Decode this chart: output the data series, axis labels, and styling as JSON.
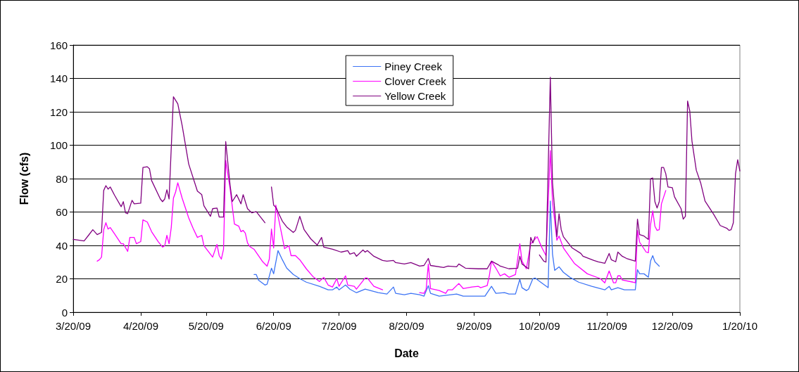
{
  "chart_data": {
    "type": "line",
    "xlabel": "Date",
    "ylabel": "Flow (cfs)",
    "xlim": [
      "2009-03-20",
      "2010-01-20"
    ],
    "xticks": [
      {
        "value": "2009-03-20",
        "label": "3/20/09"
      },
      {
        "value": "2009-04-20",
        "label": "4/20/09"
      },
      {
        "value": "2009-05-20",
        "label": "5/20/09"
      },
      {
        "value": "2009-06-20",
        "label": "6/20/09"
      },
      {
        "value": "2009-07-20",
        "label": "7/20/09"
      },
      {
        "value": "2009-08-20",
        "label": "8/20/09"
      },
      {
        "value": "2009-09-20",
        "label": "9/20/09"
      },
      {
        "value": "2009-10-20",
        "label": "10/20/09"
      },
      {
        "value": "2009-11-20",
        "label": "11/20/09"
      },
      {
        "value": "2009-12-20",
        "label": "12/20/09"
      },
      {
        "value": "2010-01-20",
        "label": "1/20/10"
      }
    ],
    "ylim": [
      0,
      160
    ],
    "yticks": [
      0,
      20,
      40,
      60,
      80,
      100,
      120,
      140,
      160
    ],
    "grid": "y",
    "legend": "top",
    "marker": "none",
    "line_style": "solid",
    "series": [
      {
        "name": "Piney Creek",
        "color": "#3d74f5",
        "x": [
          "2009-06-11",
          "2009-06-12",
          "2009-06-13",
          "2009-06-16",
          "2009-06-17",
          "2009-06-19",
          "2009-06-20",
          "2009-06-22",
          "2009-06-24",
          "2009-06-26",
          "2009-06-29",
          "2009-07-02",
          "2009-07-05",
          "2009-07-11",
          "2009-07-15",
          "2009-07-17",
          "2009-07-19",
          "2009-07-20",
          "2009-07-23",
          "2009-07-25",
          "2009-07-28",
          "2009-08-01",
          "2009-08-07",
          "2009-08-11",
          "2009-08-14",
          "2009-08-15",
          "2009-08-19",
          "2009-08-22",
          "2009-08-26",
          "2009-08-28",
          "2009-08-30",
          "2009-08-31",
          "2009-09-04",
          "2009-09-12",
          "2009-09-15",
          "2009-09-25",
          "2009-09-28",
          "2009-09-30",
          "2009-10-04",
          "2009-10-06",
          "2009-10-09",
          "2009-10-11",
          "2009-10-12",
          "2009-10-14",
          "2009-10-15",
          "2009-10-17",
          "2009-10-18",
          "2009-10-21",
          "2009-10-24",
          "2009-10-25",
          "2009-10-26",
          "2009-10-27",
          "2009-10-29",
          "2009-10-31",
          "2009-11-03",
          "2009-11-07",
          "2009-11-13",
          "2009-11-19",
          "2009-11-21",
          "2009-11-22",
          "2009-11-25",
          "2009-11-28",
          "2009-12-03",
          "2009-12-04",
          "2009-12-05",
          "2009-12-07",
          "2009-12-09",
          "2009-12-10",
          "2009-12-11",
          "2009-12-12",
          "2009-12-14"
        ],
        "values": [
          22.6,
          22.6,
          19.3,
          16.3,
          16.8,
          26.4,
          23,
          36.9,
          31.4,
          26.4,
          22.6,
          20.1,
          18,
          15.5,
          13.4,
          13.4,
          15.1,
          13.4,
          16.3,
          13.8,
          11.7,
          13.8,
          11.7,
          10.9,
          15.1,
          11.3,
          10.5,
          11.3,
          10.5,
          9.6,
          15.9,
          11.3,
          9.6,
          10.9,
          9.6,
          9.6,
          15.5,
          11.3,
          11.7,
          10.9,
          10.9,
          19.7,
          14.7,
          13,
          13.8,
          20.1,
          20.5,
          17.6,
          14.7,
          66.6,
          34.8,
          25.1,
          27.2,
          23.9,
          20.9,
          18,
          15.5,
          13.4,
          15.5,
          13.4,
          14.7,
          13.4,
          13.4,
          25.5,
          23,
          23,
          20.9,
          30.6,
          33.9,
          30.2,
          27.6
        ]
      },
      {
        "name": "Clover Creek",
        "color": "#ff00ff",
        "x": [
          "2009-03-31",
          "2009-04-01",
          "2009-04-02",
          "2009-04-03",
          "2009-04-04",
          "2009-04-05",
          "2009-04-06",
          "2009-04-08",
          "2009-04-11",
          "2009-04-12",
          "2009-04-14",
          "2009-04-15",
          "2009-04-17",
          "2009-04-18",
          "2009-04-20",
          "2009-04-21",
          "2009-04-23",
          "2009-04-25",
          "2009-04-28",
          "2009-04-30",
          "2009-05-01",
          "2009-05-02",
          "2009-05-03",
          "2009-05-04",
          "2009-05-05",
          "2009-05-06",
          "2009-05-07",
          "2009-05-09",
          "2009-05-12",
          "2009-05-14",
          "2009-05-16",
          "2009-05-18",
          "2009-05-19",
          "2009-05-23",
          "2009-05-25",
          "2009-05-26",
          "2009-05-27",
          "2009-05-28",
          "2009-05-29",
          "2009-05-31",
          "2009-06-02",
          "2009-06-04",
          "2009-06-05",
          "2009-06-06",
          "2009-06-07",
          "2009-06-08",
          "2009-06-09",
          "2009-06-11",
          "2009-06-15",
          "2009-06-17",
          "2009-06-18",
          "2009-06-19",
          "2009-06-20",
          "2009-06-21",
          "2009-06-24",
          "2009-06-25",
          "2009-06-27",
          "2009-06-28",
          "2009-06-30",
          "2009-07-02",
          "2009-07-05",
          "2009-07-08",
          "2009-07-11",
          "2009-07-13",
          "2009-07-15",
          "2009-07-17",
          "2009-07-19",
          "2009-07-20",
          "2009-07-23",
          "2009-07-24",
          "2009-07-27",
          "2009-07-28",
          "2009-08-01",
          "2009-08-02",
          "2009-08-05",
          "2009-08-09",
          "2009-08-18",
          "2009-08-26",
          "2009-08-28",
          "2009-08-29",
          "2009-08-30",
          "2009-08-31",
          "2009-09-04",
          "2009-09-07",
          "2009-09-08",
          "2009-09-10",
          "2009-09-13",
          "2009-09-15",
          "2009-09-19",
          "2009-09-22",
          "2009-09-23",
          "2009-09-26",
          "2009-09-27",
          "2009-09-28",
          "2009-09-30",
          "2009-10-02",
          "2009-10-04",
          "2009-10-06",
          "2009-10-09",
          "2009-10-11",
          "2009-10-12",
          "2009-10-14",
          "2009-10-16",
          "2009-10-19",
          "2009-10-21",
          "2009-10-23",
          "2009-10-25",
          "2009-10-26",
          "2009-10-28",
          "2009-10-29",
          "2009-10-31",
          "2009-11-05",
          "2009-11-11",
          "2009-11-17",
          "2009-11-19",
          "2009-11-21",
          "2009-11-23",
          "2009-11-24",
          "2009-11-25",
          "2009-11-26",
          "2009-11-27",
          "2009-12-02",
          "2009-12-03",
          "2009-12-04",
          "2009-12-05",
          "2009-12-08",
          "2009-12-09",
          "2009-12-10",
          "2009-12-11",
          "2009-12-12",
          "2009-12-13",
          "2009-12-14",
          "2009-12-15",
          "2009-12-17"
        ],
        "values": [
          30.6,
          31.4,
          33,
          49.4,
          53.6,
          49.8,
          50.7,
          46.9,
          41,
          41,
          36.4,
          44.8,
          44.8,
          41,
          42.3,
          55.3,
          54,
          48.2,
          42.3,
          39,
          39.8,
          46,
          41,
          50.7,
          68.3,
          72,
          77.5,
          68.3,
          56.5,
          50.3,
          44.8,
          46,
          39.8,
          33,
          40.6,
          33.9,
          31.8,
          37.7,
          90.9,
          74.1,
          52.8,
          51.5,
          48.2,
          49,
          47.3,
          41.5,
          39.4,
          37.7,
          30.2,
          27.6,
          31.8,
          49.8,
          38.5,
          64.1,
          44.8,
          38.1,
          39.8,
          33.9,
          33.9,
          31.4,
          26,
          21.4,
          18.4,
          20.9,
          16.3,
          15.1,
          20.1,
          15.5,
          21.8,
          16.3,
          15.5,
          13.8,
          20.5,
          20.5,
          15.5,
          13.4,
          null,
          11.7,
          11.3,
          13.8,
          28.9,
          14.2,
          13,
          11.3,
          13.4,
          13.4,
          17.2,
          14.2,
          15.1,
          15.5,
          14.7,
          15.9,
          21.8,
          30.6,
          26.4,
          21.8,
          23,
          20.9,
          22.6,
          41,
          30.6,
          26,
          41,
          45.2,
          39,
          33.9,
          96.8,
          66.2,
          43.1,
          45.6,
          38.5,
          29.3,
          23,
          20.1,
          17.6,
          24.7,
          17.6,
          17.6,
          21.8,
          21.8,
          19.3,
          18,
          17.6,
          49,
          41.9,
          36,
          35.6,
          52.4,
          60.7,
          51.5,
          49,
          49.4,
          64.9,
          72.9
        ]
      },
      {
        "name": "Yellow Creek",
        "color": "#800080",
        "x": [
          "2009-03-20",
          "2009-03-25",
          "2009-03-27",
          "2009-03-29",
          "2009-03-31",
          "2009-04-02",
          "2009-04-03",
          "2009-04-04",
          "2009-04-05",
          "2009-04-06",
          "2009-04-08",
          "2009-04-11",
          "2009-04-12",
          "2009-04-13",
          "2009-04-14",
          "2009-04-16",
          "2009-04-17",
          "2009-04-20",
          "2009-04-21",
          "2009-04-23",
          "2009-04-24",
          "2009-04-25",
          "2009-04-29",
          "2009-04-30",
          "2009-05-01",
          "2009-05-02",
          "2009-05-03",
          "2009-05-05",
          "2009-05-07",
          "2009-05-09",
          "2009-05-12",
          "2009-05-16",
          "2009-05-18",
          "2009-05-19",
          "2009-05-22",
          "2009-05-23",
          "2009-05-25",
          "2009-05-26",
          "2009-05-28",
          "2009-05-29",
          "2009-05-31",
          "2009-06-01",
          "2009-06-03",
          "2009-06-05",
          "2009-06-06",
          "2009-06-08",
          "2009-06-10",
          "2009-06-12",
          "2009-06-16",
          "2009-06-17",
          "2009-06-19",
          "2009-06-20",
          "2009-06-21",
          "2009-06-24",
          "2009-06-26",
          "2009-06-29",
          "2009-06-30",
          "2009-07-02",
          "2009-07-04",
          "2009-07-07",
          "2009-07-10",
          "2009-07-12",
          "2009-07-13",
          "2009-07-17",
          "2009-07-21",
          "2009-07-24",
          "2009-07-25",
          "2009-07-27",
          "2009-07-28",
          "2009-07-31",
          "2009-08-01",
          "2009-08-02",
          "2009-08-05",
          "2009-08-09",
          "2009-08-11",
          "2009-08-14",
          "2009-08-15",
          "2009-08-19",
          "2009-08-22",
          "2009-08-26",
          "2009-08-28",
          "2009-08-30",
          "2009-08-31",
          "2009-09-06",
          "2009-09-08",
          "2009-09-12",
          "2009-09-13",
          "2009-09-16",
          "2009-09-22",
          "2009-09-26",
          "2009-09-28",
          "2009-10-01",
          "2009-10-02",
          "2009-10-06",
          "2009-10-10",
          "2009-10-11",
          "2009-10-12",
          "2009-10-15",
          "2009-10-16",
          "2009-10-17",
          "2009-10-18",
          "2009-10-19",
          "2009-10-20",
          "2009-10-22",
          "2009-10-23",
          "2009-10-25",
          "2009-10-26",
          "2009-10-28",
          "2009-10-29",
          "2009-10-30",
          "2009-10-31",
          "2009-11-04",
          "2009-11-08",
          "2009-11-09",
          "2009-11-14",
          "2009-11-16",
          "2009-11-19",
          "2009-11-21",
          "2009-11-22",
          "2009-11-24",
          "2009-11-25",
          "2009-11-27",
          "2009-11-29",
          "2009-12-03",
          "2009-12-04",
          "2009-12-05",
          "2009-12-07",
          "2009-12-09",
          "2009-12-10",
          "2009-12-11",
          "2009-12-12",
          "2009-12-13",
          "2009-12-14",
          "2009-12-15",
          "2009-12-16",
          "2009-12-17",
          "2009-12-18",
          "2009-12-20",
          "2009-12-21",
          "2009-12-24",
          "2009-12-25",
          "2009-12-26",
          "2009-12-27",
          "2009-12-28",
          "2009-12-29",
          "2009-12-31",
          "2010-01-02",
          "2010-01-04",
          "2010-01-08",
          "2010-01-11",
          "2010-01-14",
          "2010-01-15",
          "2010-01-16",
          "2010-01-17",
          "2010-01-18",
          "2010-01-19",
          "2010-01-20"
        ],
        "values": [
          43.6,
          42.7,
          46,
          49.4,
          46.5,
          47.8,
          72.9,
          75.8,
          73.7,
          75,
          70,
          63.2,
          66.2,
          59.5,
          59,
          67,
          64.9,
          65.3,
          86.7,
          87.1,
          85.9,
          78.8,
          67.8,
          66.2,
          67.8,
          73.3,
          67.8,
          129,
          124.8,
          111.8,
          88.8,
          72.5,
          70.4,
          63.7,
          57.4,
          62,
          62.4,
          57,
          57,
          102.2,
          76.2,
          66.2,
          70.4,
          64.9,
          70.4,
          62,
          59.5,
          60.3,
          53.6,
          null,
          75,
          64.1,
          62.8,
          54.5,
          51.1,
          47.8,
          49,
          57.4,
          49.4,
          44,
          40.2,
          44.8,
          39,
          37.7,
          36,
          36.9,
          34.8,
          35.6,
          33.5,
          37.3,
          36,
          36.9,
          33.5,
          31,
          30.6,
          31,
          29.7,
          28.9,
          29.7,
          27.6,
          28,
          32.2,
          28,
          26.8,
          27.6,
          27.2,
          28.9,
          26.4,
          26,
          26,
          30.6,
          28.5,
          27.6,
          26,
          26.4,
          33.5,
          28.9,
          26,
          44.8,
          41.5,
          45.2,
          null,
          34.3,
          30.6,
          30,
          140.7,
          77.5,
          45.2,
          59,
          49.4,
          45.2,
          38.5,
          35.2,
          33.5,
          31,
          30.2,
          29.3,
          35.2,
          31.4,
          30.2,
          36,
          33.5,
          32.2,
          30.6,
          55.7,
          46.5,
          45.6,
          43.6,
          80,
          80.4,
          66.2,
          62.4,
          66.2,
          86.7,
          86.7,
          82.9,
          75,
          74.6,
          69.1,
          62,
          55.7,
          57.4,
          126.5,
          120.6,
          102.6,
          85,
          77.5,
          66.6,
          58.6,
          51.9,
          50.3,
          49,
          49.4,
          53.6,
          82.9,
          91.3,
          84.6
        ]
      }
    ]
  }
}
